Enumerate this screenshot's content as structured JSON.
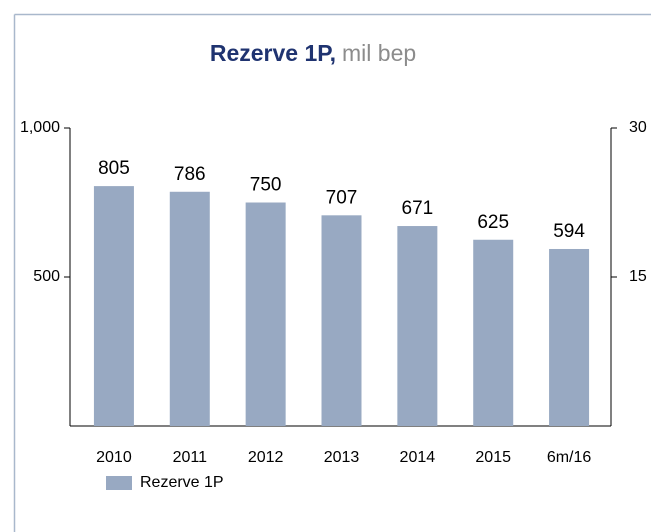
{
  "chart_data": {
    "type": "bar",
    "title": "Rezerve 1P,",
    "title_unit": "mil bep",
    "categories": [
      "2010",
      "2011",
      "2012",
      "2013",
      "2014",
      "2015",
      "6m/16"
    ],
    "series": [
      {
        "name": "Rezerve 1P",
        "color": "#98a9c2",
        "values": [
          805,
          786,
          750,
          707,
          671,
          625,
          594
        ]
      }
    ],
    "ylim": [
      0,
      1000
    ],
    "yticks": [
      500,
      {
        "value": 1000,
        "label": "1,000"
      }
    ],
    "y2lim": [
      0,
      30
    ],
    "y2ticks": [
      15,
      30
    ],
    "grid": false,
    "legend": "bottom-left"
  }
}
